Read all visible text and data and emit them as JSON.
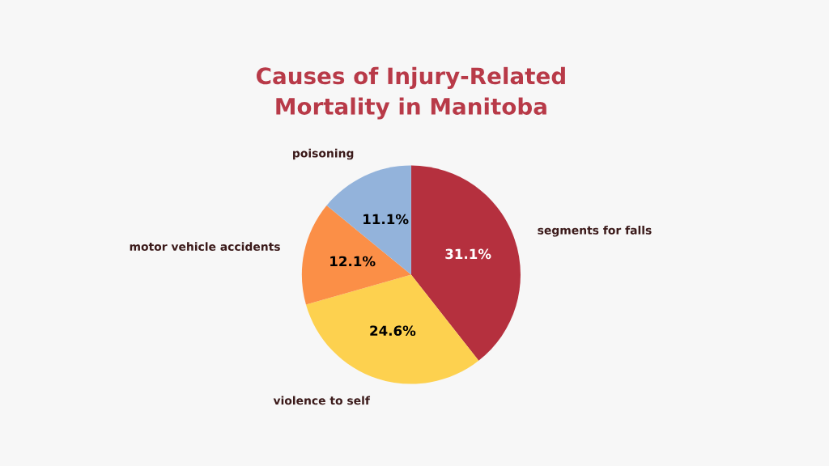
{
  "chart_data": {
    "type": "pie",
    "title": "Causes of Injury-Related\nMortality in Manitoba",
    "categories": [
      "segments for falls",
      "violence to self",
      "motor vehicle accidents",
      "poisoning"
    ],
    "values": [
      31.1,
      24.6,
      12.1,
      11.1
    ],
    "colors": [
      "#b5303e",
      "#fdd14f",
      "#fb8f47",
      "#93b3db"
    ],
    "value_labels": [
      "31.1%",
      "24.6%",
      "12.1%",
      "11.1%"
    ]
  }
}
